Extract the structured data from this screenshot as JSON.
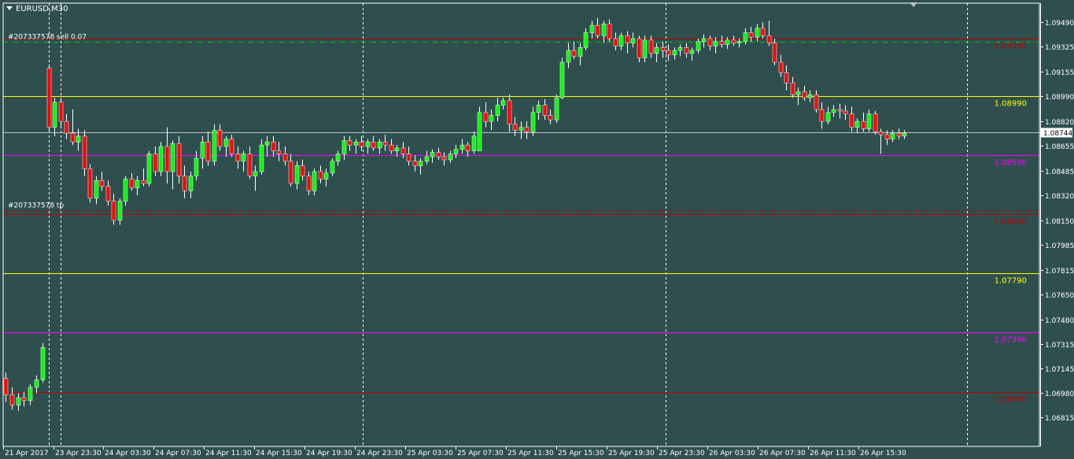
{
  "window": {
    "symbol_title": "EURUSD,M30",
    "menu_icon": "triangle-down-icon",
    "scroll_marker_icon": "triangle-down-icon"
  },
  "colors": {
    "background": "#2F4F4F",
    "frame": "#FFFFFF",
    "bull": "#00FF00",
    "bear": "#FF0000",
    "wick": "#FFFFFF",
    "red_line": "#C00000",
    "yellow_line": "#FFFF00",
    "magenta_line": "#FF00FF",
    "green_dash": "#00CC00",
    "current_price_line": "#C0C0C0"
  },
  "price_axis": {
    "min": 1.0662,
    "max": 1.0962,
    "labels": [
      "1.09490",
      "1.09325",
      "1.09155",
      "1.08990",
      "1.08820",
      "1.08655",
      "1.08485",
      "1.08320",
      "1.08150",
      "1.07985",
      "1.07815",
      "1.07650",
      "1.07480",
      "1.07315",
      "1.07145",
      "1.06980",
      "1.06815"
    ]
  },
  "current_price": "1.08744",
  "time_axis": {
    "labels": [
      "21 Apr 2017",
      "23 Apr 23:30",
      "24 Apr 03:30",
      "24 Apr 07:30",
      "24 Apr 11:30",
      "24 Apr 15:30",
      "24 Apr 19:30",
      "24 Apr 23:30",
      "25 Apr 03:30",
      "25 Apr 07:30",
      "25 Apr 11:30",
      "25 Apr 15:30",
      "25 Apr 19:30",
      "25 Apr 23:30",
      "26 Apr 03:30",
      "26 Apr 07:30",
      "26 Apr 11:30",
      "26 Apr 15:30"
    ]
  },
  "level_lines": [
    {
      "price": 1.0938,
      "label": "1.09380",
      "kind": "red"
    },
    {
      "price": 1.0899,
      "label": "1.08990",
      "kind": "yellow"
    },
    {
      "price": 1.0859,
      "label": "1.08590",
      "kind": "magenta"
    },
    {
      "price": 1.0819,
      "label": "1.08190",
      "kind": "red"
    },
    {
      "price": 1.0779,
      "label": "1.07790",
      "kind": "yellow"
    },
    {
      "price": 1.0739,
      "label": "1.07390",
      "kind": "magenta"
    },
    {
      "price": 1.0699,
      "label": "1.06990",
      "kind": "red"
    }
  ],
  "order_lines": [
    {
      "price": 1.0936,
      "label": "#207337578 sell 0.07",
      "kind": "entry"
    },
    {
      "price": 1.0822,
      "label": "#207337578 tp",
      "kind": "tp"
    }
  ],
  "chart_data": {
    "type": "candlestick",
    "symbol": "EURUSD",
    "timeframe": "M30",
    "candles": [
      [
        1.0708,
        1.0712,
        1.0692,
        1.0697
      ],
      [
        1.0697,
        1.0702,
        1.0687,
        1.069
      ],
      [
        1.069,
        1.0698,
        1.0686,
        1.0695
      ],
      [
        1.0695,
        1.0699,
        1.0689,
        1.0693
      ],
      [
        1.0693,
        1.0704,
        1.069,
        1.0702
      ],
      [
        1.0702,
        1.071,
        1.0698,
        1.0707
      ],
      [
        1.0707,
        1.0732,
        1.0705,
        1.0729
      ],
      [
        1.0918,
        1.092,
        1.0875,
        1.0878
      ],
      [
        1.0878,
        1.0898,
        1.0872,
        1.0895
      ],
      [
        1.0895,
        1.0897,
        1.0878,
        1.0882
      ],
      [
        1.0882,
        1.0887,
        1.087,
        1.0874
      ],
      [
        1.0874,
        1.089,
        1.0866,
        1.0868
      ],
      [
        1.0868,
        1.0877,
        1.0862,
        1.0872
      ],
      [
        1.0872,
        1.0876,
        1.0845,
        1.085
      ],
      [
        1.085,
        1.0853,
        1.0827,
        1.083
      ],
      [
        1.083,
        1.0845,
        1.0826,
        1.0842
      ],
      [
        1.0842,
        1.0848,
        1.0835,
        1.0838
      ],
      [
        1.0838,
        1.0842,
        1.0825,
        1.0828
      ],
      [
        1.0828,
        1.0833,
        1.0812,
        1.0815
      ],
      [
        1.0815,
        1.083,
        1.0812,
        1.0828
      ],
      [
        1.0828,
        1.0845,
        1.0825,
        1.0843
      ],
      [
        1.0843,
        1.0847,
        1.0835,
        1.0837
      ],
      [
        1.0837,
        1.0845,
        1.0832,
        1.0842
      ],
      [
        1.0842,
        1.085,
        1.0838,
        1.084
      ],
      [
        1.084,
        1.0862,
        1.0838,
        1.086
      ],
      [
        1.086,
        1.0865,
        1.0845,
        1.0848
      ],
      [
        1.0848,
        1.0868,
        1.0845,
        1.0865
      ],
      [
        1.0865,
        1.0878,
        1.084,
        1.0848
      ],
      [
        1.0848,
        1.0869,
        1.0836,
        1.0867
      ],
      [
        1.0867,
        1.0872,
        1.084,
        1.0845
      ],
      [
        1.0845,
        1.0852,
        1.083,
        1.0835
      ],
      [
        1.0835,
        1.0848,
        1.083,
        1.0845
      ],
      [
        1.0845,
        1.0862,
        1.0842,
        1.0857
      ],
      [
        1.0857,
        1.0872,
        1.085,
        1.0868
      ],
      [
        1.0868,
        1.0875,
        1.0852,
        1.0855
      ],
      [
        1.0855,
        1.088,
        1.0852,
        1.0876
      ],
      [
        1.0876,
        1.088,
        1.0862,
        1.0865
      ],
      [
        1.0865,
        1.0872,
        1.0858,
        1.087
      ],
      [
        1.087,
        1.0873,
        1.0858,
        1.086
      ],
      [
        1.086,
        1.0865,
        1.085,
        1.0855
      ],
      [
        1.0855,
        1.0862,
        1.0848,
        1.086
      ],
      [
        1.086,
        1.0865,
        1.0843,
        1.0845
      ],
      [
        1.0845,
        1.0852,
        1.0835,
        1.0848
      ],
      [
        1.0848,
        1.087,
        1.0846,
        1.0866
      ],
      [
        1.0866,
        1.0872,
        1.0858,
        1.0868
      ],
      [
        1.0868,
        1.0872,
        1.0858,
        1.0862
      ],
      [
        1.0862,
        1.0868,
        1.0855,
        1.086
      ],
      [
        1.086,
        1.0865,
        1.0852,
        1.0855
      ],
      [
        1.0855,
        1.086,
        1.0838,
        1.084
      ],
      [
        1.084,
        1.0855,
        1.0836,
        1.0852
      ],
      [
        1.0852,
        1.0856,
        1.0842,
        1.0845
      ],
      [
        1.0845,
        1.0848,
        1.0832,
        1.0835
      ],
      [
        1.0835,
        1.085,
        1.0832,
        1.0848
      ],
      [
        1.0848,
        1.0852,
        1.084,
        1.0843
      ],
      [
        1.0843,
        1.085,
        1.0838,
        1.0847
      ],
      [
        1.0847,
        1.0857,
        1.0845,
        1.0855
      ],
      [
        1.0855,
        1.0862,
        1.0852,
        1.086
      ],
      [
        1.086,
        1.0872,
        1.0856,
        1.0869
      ],
      [
        1.0869,
        1.0872,
        1.0862,
        1.0866
      ],
      [
        1.0866,
        1.087,
        1.086,
        1.0868
      ],
      [
        1.0868,
        1.0872,
        1.0862,
        1.0865
      ],
      [
        1.0865,
        1.087,
        1.086,
        1.0868
      ],
      [
        1.0868,
        1.0872,
        1.0862,
        1.0864
      ],
      [
        1.0864,
        1.087,
        1.086,
        1.0868
      ],
      [
        1.0868,
        1.0873,
        1.0862,
        1.0866
      ],
      [
        1.0866,
        1.087,
        1.086,
        1.0862
      ],
      [
        1.0862,
        1.0866,
        1.0858,
        1.0864
      ],
      [
        1.0864,
        1.0868,
        1.0857,
        1.086
      ],
      [
        1.086,
        1.0865,
        1.0852,
        1.0855
      ],
      [
        1.0855,
        1.0859,
        1.0848,
        1.0852
      ],
      [
        1.0852,
        1.0857,
        1.0846,
        1.0855
      ],
      [
        1.0855,
        1.0862,
        1.0853,
        1.0858
      ],
      [
        1.0858,
        1.0863,
        1.0854,
        1.0861
      ],
      [
        1.0861,
        1.0864,
        1.0856,
        1.0858
      ],
      [
        1.0858,
        1.0861,
        1.0852,
        1.0856
      ],
      [
        1.0856,
        1.0862,
        1.0854,
        1.086
      ],
      [
        1.086,
        1.0866,
        1.0857,
        1.0863
      ],
      [
        1.0863,
        1.087,
        1.086,
        1.0866
      ],
      [
        1.0866,
        1.0868,
        1.0858,
        1.0862
      ],
      [
        1.0862,
        1.0875,
        1.086,
        1.0872
      ],
      [
        1.0862,
        1.0892,
        1.0862,
        1.0888
      ],
      [
        1.0888,
        1.0895,
        1.0878,
        1.0882
      ],
      [
        1.0882,
        1.089,
        1.0876,
        1.0886
      ],
      [
        1.0886,
        1.0898,
        1.0882,
        1.0893
      ],
      [
        1.0893,
        1.0898,
        1.089,
        1.0896
      ],
      [
        1.0896,
        1.09,
        1.0875,
        1.088
      ],
      [
        1.088,
        1.0885,
        1.0872,
        1.0876
      ],
      [
        1.0876,
        1.0882,
        1.087,
        1.0878
      ],
      [
        1.0878,
        1.0882,
        1.087,
        1.0875
      ],
      [
        1.0875,
        1.0892,
        1.0872,
        1.0888
      ],
      [
        1.0888,
        1.0896,
        1.0883,
        1.0893
      ],
      [
        1.0893,
        1.0897,
        1.0883,
        1.0886
      ],
      [
        1.0886,
        1.089,
        1.088,
        1.0883
      ],
      [
        1.0883,
        1.09,
        1.0881,
        1.0898
      ],
      [
        1.0898,
        1.0925,
        1.0897,
        1.0922
      ],
      [
        1.0922,
        1.0935,
        1.0918,
        1.093
      ],
      [
        1.093,
        1.0936,
        1.0924,
        1.0926
      ],
      [
        1.0926,
        1.0935,
        1.092,
        1.0932
      ],
      [
        1.0932,
        1.0945,
        1.093,
        1.0942
      ],
      [
        1.0942,
        1.095,
        1.0938,
        1.0947
      ],
      [
        1.0947,
        1.0952,
        1.0938,
        1.094
      ],
      [
        1.094,
        1.095,
        1.0935,
        1.0948
      ],
      [
        1.0948,
        1.0951,
        1.0936,
        1.0938
      ],
      [
        1.0938,
        1.0942,
        1.093,
        1.0933
      ],
      [
        1.0933,
        1.0942,
        1.093,
        1.094
      ],
      [
        1.094,
        1.0943,
        1.0928,
        1.0935
      ],
      [
        1.0935,
        1.0942,
        1.0932,
        1.0938
      ],
      [
        1.0938,
        1.094,
        1.0922,
        1.0925
      ],
      [
        1.0925,
        1.094,
        1.0922,
        1.0937
      ],
      [
        1.0937,
        1.094,
        1.0925,
        1.0928
      ],
      [
        1.0928,
        1.0935,
        1.0922,
        1.0932
      ],
      [
        1.0932,
        1.0936,
        1.0925,
        1.093
      ],
      [
        1.093,
        1.0934,
        1.0923,
        1.0927
      ],
      [
        1.0927,
        1.0932,
        1.0924,
        1.093
      ],
      [
        1.093,
        1.0934,
        1.0926,
        1.0932
      ],
      [
        1.0932,
        1.0935,
        1.0925,
        1.0928
      ],
      [
        1.0928,
        1.0932,
        1.0923,
        1.093
      ],
      [
        1.093,
        1.0938,
        1.0928,
        1.0936
      ],
      [
        1.0936,
        1.0941,
        1.0932,
        1.0938
      ],
      [
        1.0938,
        1.094,
        1.093,
        1.0933
      ],
      [
        1.0933,
        1.0939,
        1.0928,
        1.0936
      ],
      [
        1.0936,
        1.094,
        1.0932,
        1.0934
      ],
      [
        1.0934,
        1.0939,
        1.0931,
        1.0937
      ],
      [
        1.0937,
        1.094,
        1.0933,
        1.0935
      ],
      [
        1.0935,
        1.0938,
        1.0932,
        1.0936
      ],
      [
        1.0936,
        1.0945,
        1.0934,
        1.0942
      ],
      [
        1.0942,
        1.0946,
        1.0936,
        1.0939
      ],
      [
        1.0939,
        1.0948,
        1.0936,
        1.0945
      ],
      [
        1.0945,
        1.0949,
        1.0938,
        1.094
      ],
      [
        1.094,
        1.095,
        1.0933,
        1.0935
      ],
      [
        1.0935,
        1.0938,
        1.092,
        1.0922
      ],
      [
        1.0922,
        1.0927,
        1.0912,
        1.0915
      ],
      [
        1.0915,
        1.092,
        1.0903,
        1.0908
      ],
      [
        1.0908,
        1.0912,
        1.0898,
        1.09
      ],
      [
        1.09,
        1.0905,
        1.0893,
        1.0902
      ],
      [
        1.0902,
        1.0906,
        1.0896,
        1.0898
      ],
      [
        1.0898,
        1.0903,
        1.0895,
        1.09
      ],
      [
        1.09,
        1.0903,
        1.0888,
        1.089
      ],
      [
        1.089,
        1.0895,
        1.0877,
        1.0882
      ],
      [
        1.0882,
        1.0892,
        1.088,
        1.0888
      ],
      [
        1.0888,
        1.0893,
        1.0885,
        1.089
      ],
      [
        1.089,
        1.0894,
        1.0884,
        1.0889
      ],
      [
        1.0889,
        1.0893,
        1.0883,
        1.0887
      ],
      [
        1.0887,
        1.0892,
        1.0875,
        1.0878
      ],
      [
        1.0878,
        1.0884,
        1.0874,
        1.0882
      ],
      [
        1.0882,
        1.0888,
        1.0875,
        1.0877
      ],
      [
        1.0877,
        1.089,
        1.0875,
        1.0887
      ],
      [
        1.0887,
        1.0889,
        1.0873,
        1.0875
      ],
      [
        1.0875,
        1.0877,
        1.086,
        1.0873
      ],
      [
        1.0873,
        1.0876,
        1.0866,
        1.087
      ],
      [
        1.087,
        1.0876,
        1.0868,
        1.0874
      ],
      [
        1.0874,
        1.0877,
        1.087,
        1.0872
      ],
      [
        1.0872,
        1.0876,
        1.087,
        1.0874
      ]
    ],
    "candles_format": "[open, high, low, close]",
    "vertical_separators": [
      "23 Apr 23:30",
      "24 Apr 23:30",
      "25 Apr 23:30"
    ],
    "ylim": [
      1.0662,
      1.0962
    ]
  }
}
